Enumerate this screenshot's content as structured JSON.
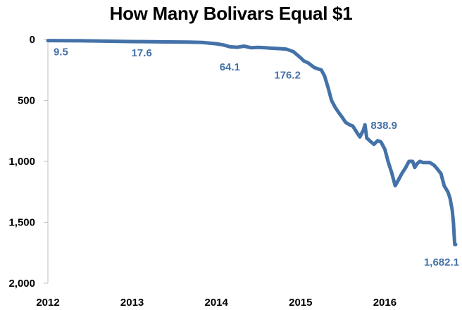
{
  "chart_data": {
    "type": "line",
    "title": "How Many Bolivars Equal $1",
    "xlabel": "",
    "ylabel": "",
    "x_ticks": [
      "2012",
      "2013",
      "2014",
      "2015",
      "2016"
    ],
    "y_ticks": [
      "0",
      "500",
      "1,000",
      "1,500",
      "2,000"
    ],
    "xlim": [
      "2012-01-01",
      "2016-12-31"
    ],
    "ylim": [
      0,
      2000
    ],
    "y_inverted": true,
    "grid": false,
    "legend": "none",
    "color": "#4472a8",
    "series": [
      {
        "x": [
          "2012-01-01",
          "2012-03-01",
          "2012-06-01",
          "2012-09-01",
          "2013-01-01",
          "2013-03-01",
          "2013-06-01",
          "2013-09-01",
          "2013-11-01",
          "2014-01-01",
          "2014-02-01",
          "2014-03-01",
          "2014-04-01",
          "2014-05-01",
          "2014-06-01",
          "2014-07-01",
          "2014-08-01",
          "2014-09-01",
          "2014-10-01",
          "2014-11-01",
          "2014-12-01",
          "2015-01-01",
          "2015-01-15",
          "2015-02-01",
          "2015-02-15",
          "2015-03-01",
          "2015-03-15",
          "2015-04-01",
          "2015-04-15",
          "2015-05-01",
          "2015-05-15",
          "2015-06-01",
          "2015-06-15",
          "2015-07-01",
          "2015-07-15",
          "2015-08-01",
          "2015-08-15",
          "2015-09-01",
          "2015-09-15",
          "2015-10-01",
          "2015-10-07",
          "2015-10-15",
          "2015-10-22",
          "2015-11-01",
          "2015-11-15",
          "2015-12-01",
          "2015-12-15",
          "2016-01-01",
          "2016-01-15",
          "2016-02-01",
          "2016-02-15",
          "2016-03-01",
          "2016-03-15",
          "2016-04-01",
          "2016-04-15",
          "2016-05-01",
          "2016-05-10",
          "2016-05-20",
          "2016-06-01",
          "2016-06-15",
          "2016-07-01",
          "2016-07-15",
          "2016-08-01",
          "2016-08-15",
          "2016-09-01",
          "2016-09-15",
          "2016-10-01",
          "2016-10-10",
          "2016-10-20",
          "2016-10-25",
          "2016-10-28",
          "2016-10-31",
          "2016-11-02",
          "2016-11-04"
        ],
        "values": [
          9.5,
          10,
          11,
          14,
          17.6,
          18,
          20,
          22,
          24,
          35,
          45,
          60,
          64.1,
          55,
          68,
          65,
          68,
          72,
          75,
          80,
          100,
          150,
          176.2,
          190,
          210,
          230,
          240,
          250,
          300,
          400,
          500,
          560,
          600,
          640,
          680,
          700,
          710,
          760,
          800,
          740,
          700,
          810,
          820,
          838.9,
          860,
          830,
          840,
          900,
          1000,
          1100,
          1200,
          1150,
          1100,
          1050,
          1000,
          1000,
          1050,
          1020,
          1000,
          1010,
          1010,
          1010,
          1030,
          1060,
          1100,
          1200,
          1250,
          1300,
          1400,
          1500,
          1600,
          1682.1,
          1682.1,
          1682.1
        ]
      }
    ],
    "annotations": [
      {
        "text": "9.5",
        "x": "2012-01-01",
        "y": 9.5
      },
      {
        "text": "17.6",
        "x": "2013-01-01",
        "y": 17.6
      },
      {
        "text": "64.1",
        "x": "2014-04-01",
        "y": 64.1
      },
      {
        "text": "176.2",
        "x": "2015-01-15",
        "y": 176.2
      },
      {
        "text": "838.9",
        "x": "2015-11-01",
        "y": 838.9
      },
      {
        "text": "1,682.1",
        "x": "2016-10-31",
        "y": 1682.1
      }
    ]
  }
}
